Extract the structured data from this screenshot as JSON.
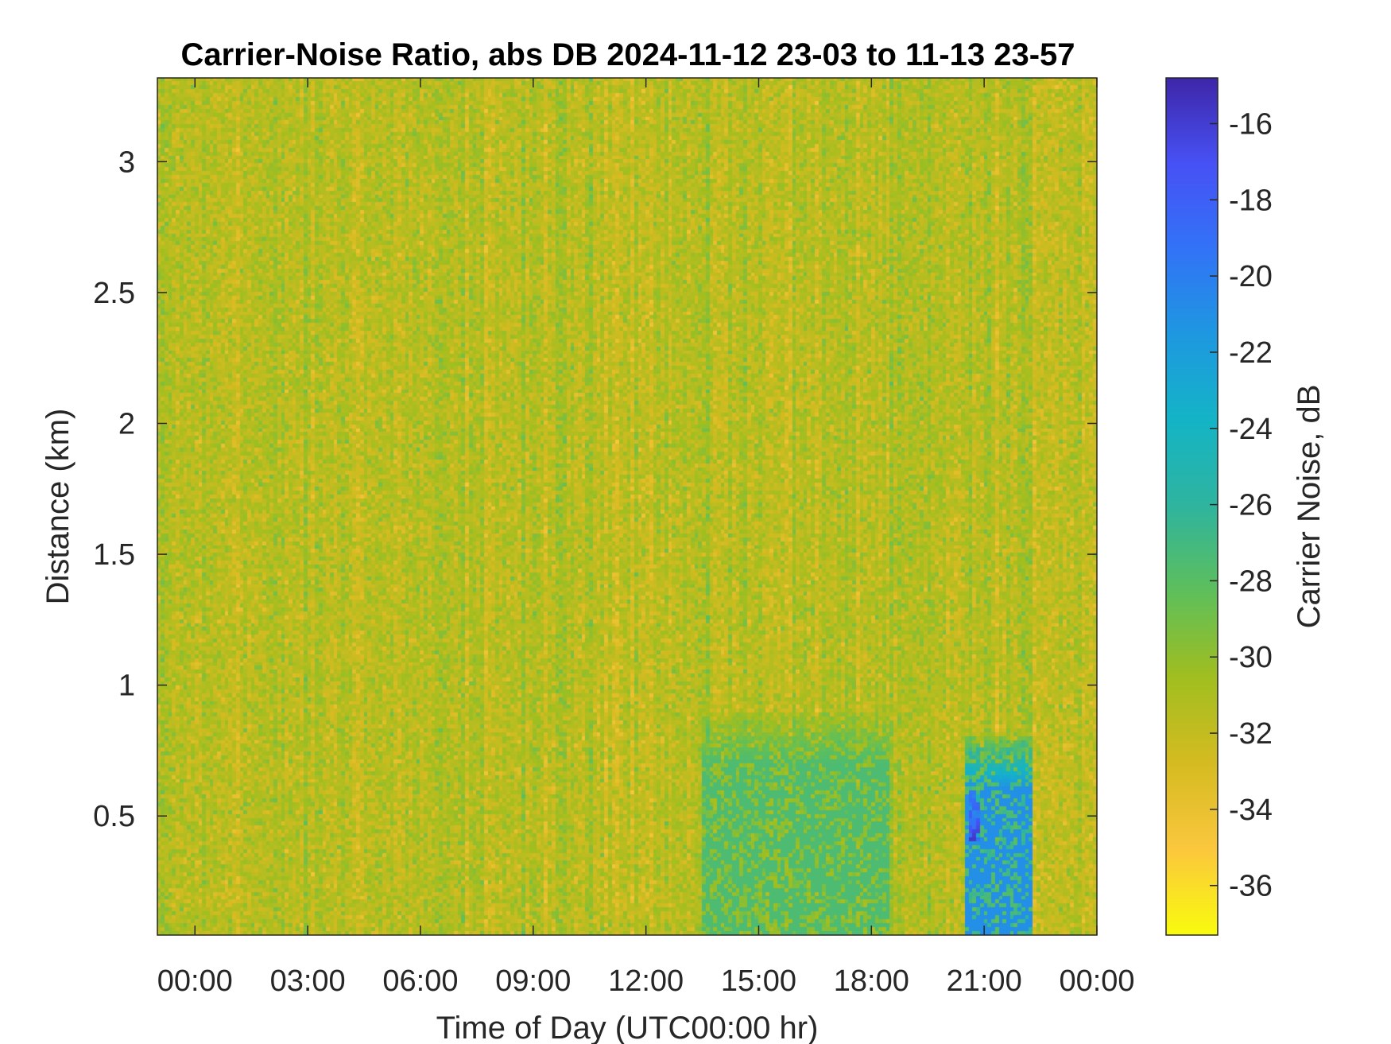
{
  "chart_data": {
    "type": "heatmap",
    "title": "Carrier-Noise Ratio, abs DB 2024-11-12 23-03 to 11-13 23-57",
    "xlabel": "Time of Day (UTC00:00 hr)",
    "ylabel": "Distance (km)",
    "colorbar_label": "Carrier Noise, dB",
    "x_range_hours": [
      -1.0,
      24.0
    ],
    "y_range_km": [
      0.045,
      3.32
    ],
    "x_ticks": [
      {
        "hour": 0,
        "label": "00:00"
      },
      {
        "hour": 3,
        "label": "03:00"
      },
      {
        "hour": 6,
        "label": "06:00"
      },
      {
        "hour": 9,
        "label": "09:00"
      },
      {
        "hour": 12,
        "label": "12:00"
      },
      {
        "hour": 15,
        "label": "15:00"
      },
      {
        "hour": 18,
        "label": "18:00"
      },
      {
        "hour": 21,
        "label": "21:00"
      },
      {
        "hour": 24,
        "label": "00:00"
      }
    ],
    "y_ticks": [
      {
        "value": 0.5,
        "label": "0.5"
      },
      {
        "value": 1.0,
        "label": "1"
      },
      {
        "value": 1.5,
        "label": "1.5"
      },
      {
        "value": 2.0,
        "label": "2"
      },
      {
        "value": 2.5,
        "label": "2.5"
      },
      {
        "value": 3.0,
        "label": "3"
      }
    ],
    "colorbar_range_db": [
      -37.3,
      -14.8
    ],
    "colorbar_ticks": [
      {
        "value": -16,
        "label": "-16"
      },
      {
        "value": -18,
        "label": "-18"
      },
      {
        "value": -20,
        "label": "-20"
      },
      {
        "value": -22,
        "label": "-22"
      },
      {
        "value": -24,
        "label": "-24"
      },
      {
        "value": -26,
        "label": "-26"
      },
      {
        "value": -28,
        "label": "-28"
      },
      {
        "value": -30,
        "label": "-30"
      },
      {
        "value": -32,
        "label": "-32"
      },
      {
        "value": -34,
        "label": "-34"
      },
      {
        "value": -36,
        "label": "-36"
      }
    ],
    "colormap": "parula_reversed",
    "colormap_stops": [
      "#f9fb0e",
      "#fbc73d",
      "#d5bb21",
      "#a1be1f",
      "#5ebf5a",
      "#2fb49e",
      "#14b4c6",
      "#1e98e0",
      "#3273f7",
      "#4751f5",
      "#3e26a8"
    ],
    "grid": false,
    "background_db": -31.5,
    "background_spread_db": 2.5,
    "features": [
      {
        "name": "low-level return",
        "hours": [
          13.5,
          18.5
        ],
        "km": [
          0.045,
          0.9
        ],
        "db": -27.5
      },
      {
        "name": "strong return",
        "hours": [
          20.5,
          22.3
        ],
        "km": [
          0.045,
          0.8
        ],
        "db": -21.0
      },
      {
        "name": "strongest core",
        "hours": [
          20.6,
          20.9
        ],
        "km": [
          0.4,
          0.6
        ],
        "db": -15.5
      }
    ]
  }
}
